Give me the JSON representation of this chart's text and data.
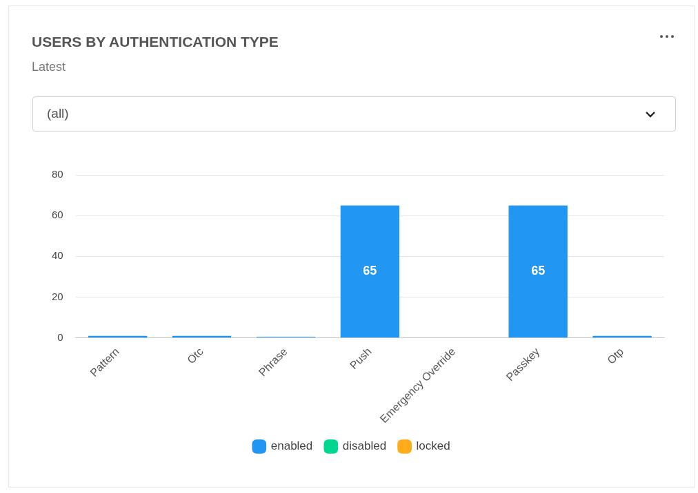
{
  "chart_data": {
    "type": "bar",
    "title": "USERS BY AUTHENTICATION TYPE",
    "subtitle": "Latest",
    "annotations": [
      "(all)"
    ],
    "categories": [
      "Pattern",
      "Otc",
      "Phrase",
      "Push",
      "Emergency Override",
      "Passkey",
      "Otp"
    ],
    "series": [
      {
        "name": "enabled",
        "color": "#2196f3",
        "values": [
          1,
          1,
          0.5,
          65,
          0,
          65,
          1
        ],
        "value_labels": [
          null,
          null,
          null,
          "65",
          null,
          "65",
          null
        ]
      },
      {
        "name": "disabled",
        "color": "#00d68f",
        "values": [
          0,
          0,
          0,
          0,
          0,
          0,
          0
        ]
      },
      {
        "name": "locked",
        "color": "#ffab1a",
        "values": [
          0,
          0,
          0,
          0,
          0,
          0,
          0
        ]
      }
    ],
    "stacked": true,
    "ylim": [
      0,
      80
    ],
    "yticks": [
      0,
      20,
      40,
      60,
      80
    ],
    "grid": "y",
    "legend": "bottom"
  }
}
